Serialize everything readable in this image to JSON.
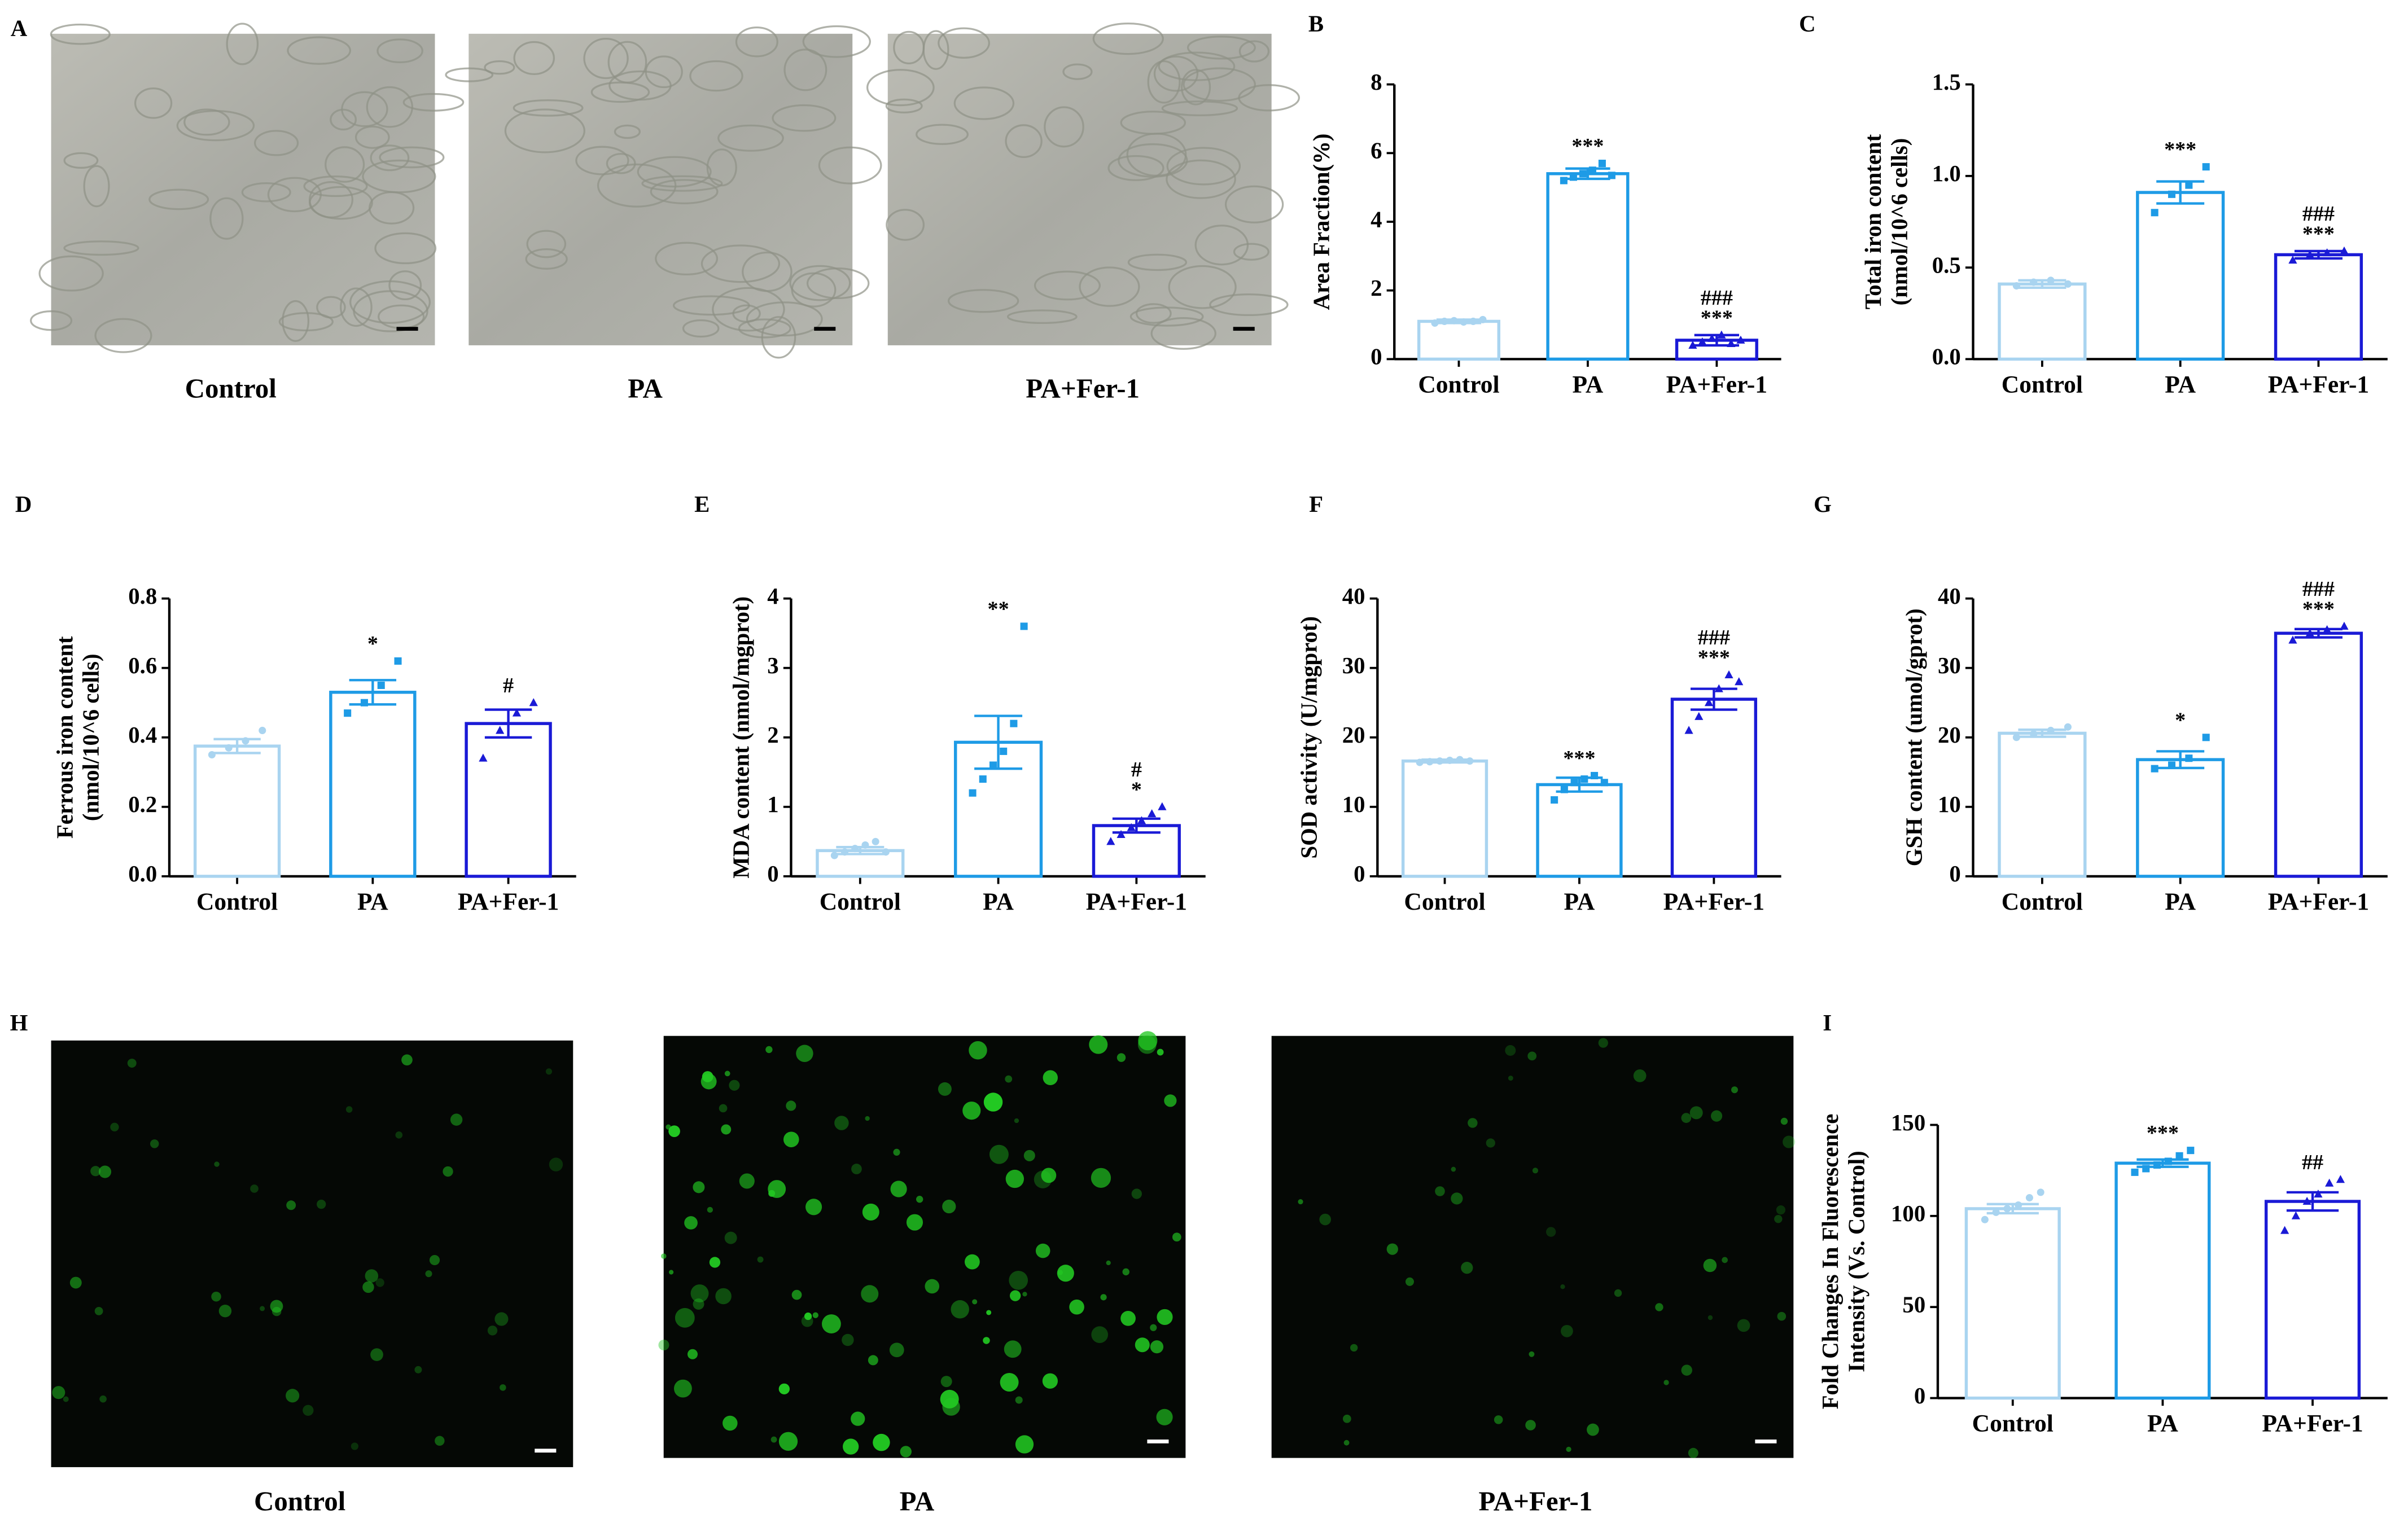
{
  "image_panels": [
    {
      "panel": "A",
      "labels": [
        "Control",
        "PA",
        "PA+Fer-1"
      ]
    },
    {
      "panel": "H",
      "labels": [
        "Control",
        "PA",
        "PA+Fer-1"
      ]
    }
  ],
  "chart_data": [
    {
      "type": "bar",
      "panel": "B",
      "ylabel": [
        "Area Fraction(%)"
      ],
      "categories": [
        "Control",
        "PA",
        "PA+Fer-1"
      ],
      "colors": [
        "#a9d4f0",
        "#1e9be6",
        "#1a1ad6"
      ],
      "values": [
        1.1,
        5.4,
        0.55
      ],
      "errors": [
        0.05,
        0.15,
        0.15
      ],
      "points": [
        [
          1.05,
          1.1,
          1.12,
          1.08,
          1.1,
          1.15
        ],
        [
          5.2,
          5.3,
          5.4,
          5.5,
          5.7,
          5.35
        ],
        [
          0.4,
          0.5,
          0.6,
          0.7,
          0.45,
          0.55
        ]
      ],
      "annotations": [
        [],
        [
          "***"
        ],
        [
          "###",
          "***"
        ]
      ],
      "ylim": [
        0,
        8
      ],
      "yticks": [
        0,
        2,
        4,
        6,
        8
      ]
    },
    {
      "type": "bar",
      "panel": "C",
      "ylabel": [
        "Total iron content",
        "(nmol/10^6 cells)"
      ],
      "categories": [
        "Control",
        "PA",
        "PA+Fer-1"
      ],
      "colors": [
        "#a9d4f0",
        "#1e9be6",
        "#1a1ad6"
      ],
      "values": [
        0.41,
        0.91,
        0.57
      ],
      "errors": [
        0.02,
        0.06,
        0.02
      ],
      "points": [
        [
          0.4,
          0.42,
          0.43,
          0.41
        ],
        [
          0.8,
          0.9,
          0.95,
          1.05
        ],
        [
          0.54,
          0.57,
          0.58,
          0.59
        ]
      ],
      "annotations": [
        [],
        [
          "***"
        ],
        [
          "###",
          "***"
        ]
      ],
      "ylim": [
        0,
        1.5
      ],
      "yticks": [
        {
          "value": 0,
          "label": "0.0"
        },
        {
          "value": 0.5,
          "label": "0.5"
        },
        {
          "value": 1,
          "label": "1.0"
        },
        {
          "value": 1.5,
          "label": "1.5"
        }
      ]
    },
    {
      "type": "bar",
      "panel": "D",
      "ylabel": [
        "Ferrous iron content",
        "(nmol/10^6 cells)"
      ],
      "categories": [
        "Control",
        "PA",
        "PA+Fer-1"
      ],
      "colors": [
        "#a9d4f0",
        "#1e9be6",
        "#1a1ad6"
      ],
      "values": [
        0.375,
        0.53,
        0.44
      ],
      "errors": [
        0.02,
        0.035,
        0.04
      ],
      "points": [
        [
          0.35,
          0.37,
          0.39,
          0.42
        ],
        [
          0.47,
          0.5,
          0.55,
          0.62
        ],
        [
          0.34,
          0.42,
          0.47,
          0.5
        ]
      ],
      "annotations": [
        [],
        [
          "*"
        ],
        [
          "#"
        ]
      ],
      "ylim": [
        0,
        0.8
      ],
      "yticks": [
        {
          "value": 0,
          "label": "0.0"
        },
        0.2,
        0.4,
        0.6,
        0.8
      ]
    },
    {
      "type": "bar",
      "panel": "E",
      "ylabel": [
        "MDA content (nmol/mgprot)"
      ],
      "categories": [
        "Control",
        "PA",
        "PA+Fer-1"
      ],
      "colors": [
        "#a9d4f0",
        "#1e9be6",
        "#1a1ad6"
      ],
      "values": [
        0.37,
        1.93,
        0.73
      ],
      "errors": [
        0.05,
        0.38,
        0.1
      ],
      "points": [
        [
          0.3,
          0.35,
          0.4,
          0.45,
          0.5,
          0.35
        ],
        [
          1.2,
          1.4,
          1.6,
          1.8,
          2.2,
          3.6
        ],
        [
          0.5,
          0.6,
          0.7,
          0.8,
          0.9,
          1.0
        ]
      ],
      "annotations": [
        [],
        [
          "**"
        ],
        [
          "#",
          "*"
        ]
      ],
      "ylim": [
        0,
        4
      ],
      "yticks": [
        0,
        1,
        2,
        3,
        4
      ]
    },
    {
      "type": "bar",
      "panel": "F",
      "ylabel": [
        "SOD activity (U/mgprot)"
      ],
      "categories": [
        "Control",
        "PA",
        "PA+Fer-1"
      ],
      "colors": [
        "#a9d4f0",
        "#1e9be6",
        "#1a1ad6"
      ],
      "values": [
        16.6,
        13.2,
        25.5
      ],
      "errors": [
        0.2,
        1.0,
        1.5
      ],
      "points": [
        [
          16.4,
          16.5,
          16.6,
          16.7,
          16.8,
          16.6
        ],
        [
          11,
          12.5,
          13.5,
          14,
          14.5,
          13.5
        ],
        [
          21,
          23,
          25,
          27,
          29,
          28
        ]
      ],
      "annotations": [
        [],
        [
          "***"
        ],
        [
          "###",
          "***"
        ]
      ],
      "ylim": [
        0,
        40
      ],
      "yticks": [
        0,
        10,
        20,
        30,
        40
      ]
    },
    {
      "type": "bar",
      "panel": "G",
      "ylabel": [
        "GSH content (umol/gprot)"
      ],
      "categories": [
        "Control",
        "PA",
        "PA+Fer-1"
      ],
      "colors": [
        "#a9d4f0",
        "#1e9be6",
        "#1a1ad6"
      ],
      "values": [
        20.6,
        16.8,
        35
      ],
      "errors": [
        0.5,
        1.2,
        0.6
      ],
      "points": [
        [
          20,
          20.5,
          21,
          21.5
        ],
        [
          15.5,
          16,
          17,
          20
        ],
        [
          34,
          35,
          35.5,
          36
        ]
      ],
      "annotations": [
        [],
        [
          "*"
        ],
        [
          "###",
          "***"
        ]
      ],
      "ylim": [
        0,
        40
      ],
      "yticks": [
        0,
        10,
        20,
        30,
        40
      ]
    },
    {
      "type": "bar",
      "panel": "I",
      "ylabel": [
        "Fold Changes In Fluorescence",
        "Intensity (Vs. Control)"
      ],
      "categories": [
        "Control",
        "PA",
        "PA+Fer-1"
      ],
      "colors": [
        "#a9d4f0",
        "#1e9be6",
        "#1a1ad6"
      ],
      "values": [
        104,
        129,
        108
      ],
      "errors": [
        2.5,
        2,
        5
      ],
      "points": [
        [
          98,
          102,
          104,
          106,
          110,
          113
        ],
        [
          124,
          126,
          128,
          130,
          133,
          136
        ],
        [
          92,
          100,
          108,
          112,
          118,
          120
        ]
      ],
      "annotations": [
        [],
        [
          "***"
        ],
        [
          "##"
        ]
      ],
      "ylim": [
        0,
        150
      ],
      "yticks": [
        0,
        50,
        100,
        150
      ]
    }
  ]
}
